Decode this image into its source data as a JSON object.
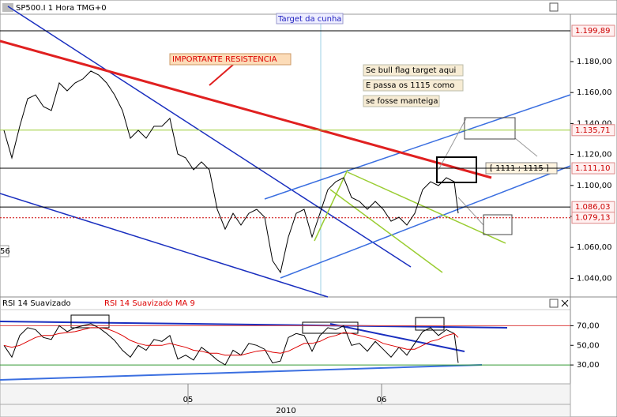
{
  "chart_data": [
    {
      "type": "line",
      "title": "SP500.I 1 Hora TMG+0",
      "x": [
        5,
        15,
        25,
        35,
        45,
        55,
        65,
        75,
        85,
        95,
        105,
        115,
        125,
        135,
        145,
        155,
        165,
        175,
        185,
        195,
        205,
        215,
        225,
        235,
        245,
        255,
        265,
        275,
        285,
        295,
        305,
        315,
        325,
        335,
        345,
        355,
        365,
        375,
        385,
        395,
        405,
        415,
        425,
        435,
        445,
        455,
        465,
        475,
        485,
        495,
        505,
        515,
        525,
        535,
        545,
        555,
        565,
        575,
        580
      ],
      "series": [
        {
          "color": "#000000",
          "values": [
            1135.6,
            1117.8,
            1138.2,
            1156.0,
            1158.5,
            1150.9,
            1148.4,
            1166.2,
            1161.1,
            1166.2,
            1168.8,
            1173.9,
            1171.3,
            1166.2,
            1158.5,
            1148.4,
            1130.5,
            1135.6,
            1130.5,
            1138.2,
            1138.2,
            1143.3,
            1120.3,
            1117.8,
            1110.1,
            1115.2,
            1110.1,
            1084.6,
            1071.8,
            1082.0,
            1074.4,
            1082.0,
            1084.6,
            1079.5,
            1051.4,
            1043.8,
            1066.7,
            1082.0,
            1084.6,
            1066.7,
            1082.0,
            1097.3,
            1102.4,
            1105.0,
            1092.2,
            1089.7,
            1084.6,
            1089.7,
            1084.6,
            1076.9,
            1079.5,
            1074.4,
            1082.0,
            1097.3,
            1102.4,
            1099.9,
            1105.0,
            1102.4,
            1082.0
          ]
        }
      ],
      "xlim": [
        0,
        722
      ],
      "xticks": [
        {
          "value": 238,
          "label": "05"
        },
        {
          "value": 483,
          "label": "06"
        }
      ],
      "ylim": [
        1029.5,
        1210.6
      ],
      "yticks": [
        {
          "value": 1040,
          "label": "1.040,00"
        },
        {
          "value": 1060,
          "label": "1.060,00"
        },
        {
          "value": 1080,
          "label": "1.080,00"
        },
        {
          "value": 1100,
          "label": "1.100,00"
        },
        {
          "value": 1120,
          "label": "1.120,00"
        },
        {
          "value": 1140,
          "label": "1.140,00"
        },
        {
          "value": 1160,
          "label": "1.160,00"
        },
        {
          "value": 1180,
          "label": "1.180,00"
        }
      ],
      "hlines": [
        {
          "value": 1199.89,
          "label": "1.199,89",
          "color": "#000000"
        },
        {
          "value": 1135.71,
          "label": "1.135,71",
          "color": "#9acd32"
        },
        {
          "value": 1111.1,
          "label": "1.111,10",
          "color": "#000000"
        },
        {
          "value": 1086.03,
          "label": "1.086,03",
          "color": "#000000"
        },
        {
          "value": 1079.13,
          "label": "1.079,13",
          "color": "#cc0000"
        }
      ],
      "annotations": [
        "IMPORTANTE RESISTENCIA",
        "Se bull flag target aqui",
        "E passa os 1115 como",
        "se fosse manteiga",
        "Target da cunha",
        "[ 1111 ; 1115 ]",
        "56"
      ]
    },
    {
      "type": "line",
      "x": [
        5,
        15,
        25,
        35,
        45,
        55,
        65,
        75,
        85,
        95,
        105,
        115,
        125,
        135,
        145,
        155,
        165,
        175,
        185,
        195,
        205,
        215,
        225,
        235,
        245,
        255,
        265,
        275,
        285,
        295,
        305,
        315,
        325,
        335,
        345,
        355,
        365,
        375,
        385,
        395,
        405,
        415,
        425,
        435,
        445,
        455,
        465,
        475,
        485,
        495,
        505,
        515,
        525,
        535,
        545,
        555,
        565,
        575,
        580
      ],
      "series": [
        {
          "name": "RSI 14 Suavizado",
          "color": "#000000",
          "values": [
            50,
            38,
            60,
            68,
            66,
            58,
            56,
            70,
            64,
            68,
            70,
            72,
            68,
            62,
            55,
            45,
            38,
            50,
            45,
            56,
            54,
            60,
            36,
            40,
            35,
            48,
            42,
            35,
            30,
            45,
            40,
            52,
            50,
            46,
            32,
            34,
            58,
            62,
            60,
            44,
            60,
            68,
            66,
            70,
            50,
            52,
            44,
            54,
            46,
            38,
            48,
            40,
            52,
            64,
            68,
            60,
            66,
            62,
            32
          ]
        },
        {
          "name": "RSI 14 Suavizado MA 9",
          "color": "#dd0000",
          "values": [
            50,
            48,
            50,
            54,
            58,
            60,
            60,
            62,
            63,
            64,
            66,
            68,
            68,
            67,
            64,
            60,
            55,
            52,
            50,
            50,
            50,
            52,
            50,
            48,
            45,
            44,
            42,
            42,
            40,
            40,
            40,
            42,
            44,
            45,
            43,
            42,
            44,
            48,
            52,
            52,
            54,
            58,
            60,
            63,
            62,
            60,
            58,
            56,
            52,
            50,
            48,
            46,
            46,
            50,
            54,
            56,
            60,
            62,
            58
          ]
        }
      ],
      "xlim": [
        0,
        722
      ],
      "ylim": [
        14,
        84
      ],
      "yticks": [
        {
          "value": 30,
          "label": "30,00"
        },
        {
          "value": 50,
          "label": "50,00"
        },
        {
          "value": 70,
          "label": "70,00"
        }
      ],
      "hlines": [
        {
          "value": 70,
          "color": "#dd4444"
        },
        {
          "value": 30,
          "color": "#339933"
        }
      ]
    }
  ],
  "year_label": "2010"
}
